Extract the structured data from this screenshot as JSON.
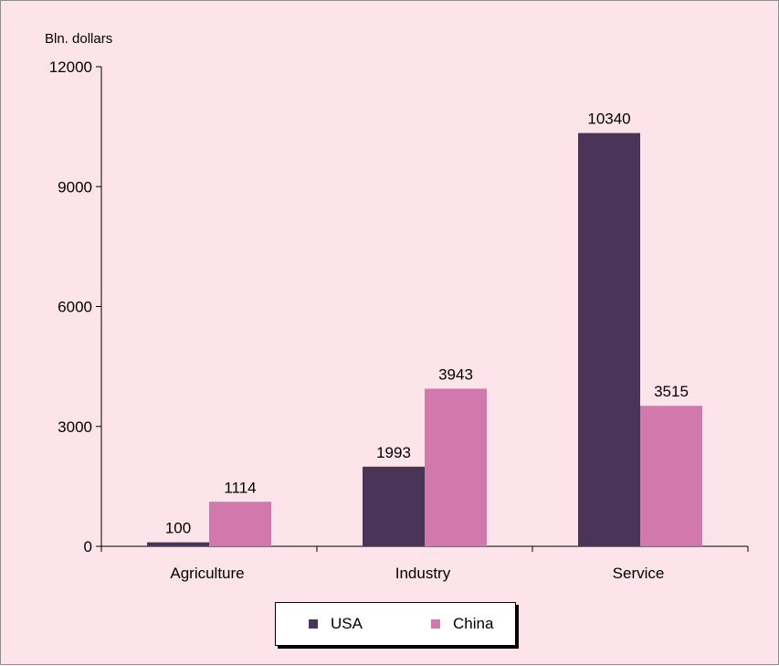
{
  "chart_data": {
    "type": "bar",
    "ylabel": "Bln. dollars",
    "categories": [
      "Agriculture",
      "Industry",
      "Service"
    ],
    "series": [
      {
        "name": "USA",
        "color": "#4a3558",
        "values": [
          100,
          1993,
          10340
        ]
      },
      {
        "name": "China",
        "color": "#d179ac",
        "values": [
          1114,
          3943,
          3515
        ]
      }
    ],
    "ylim": [
      0,
      12000
    ],
    "yticks": [
      0,
      3000,
      6000,
      9000,
      12000
    ],
    "data_labels": true,
    "grid": false,
    "legend_position": "bottom"
  }
}
